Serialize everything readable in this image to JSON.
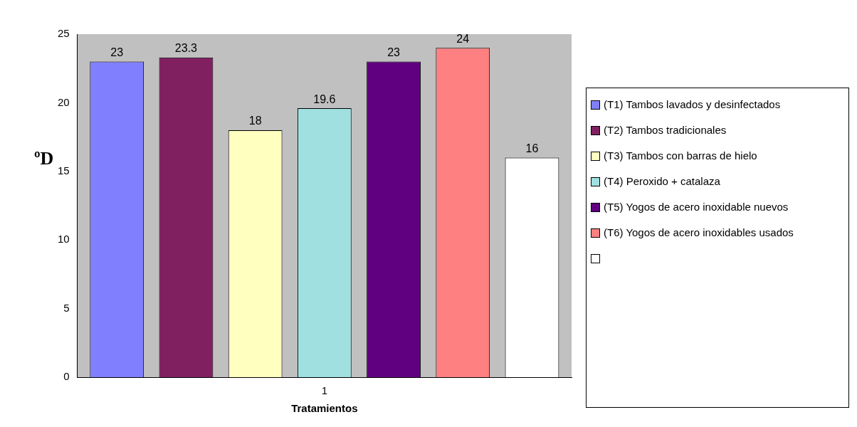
{
  "chart_data": {
    "type": "bar",
    "xlabel": "Tratamientos",
    "ylabel": "ºD",
    "categories": [
      "1"
    ],
    "series": [
      {
        "name": "(T1) Tambos lavados y desinfectados",
        "color": "#8080ff",
        "values": [
          23
        ]
      },
      {
        "name": "(T2) Tambos tradicionales",
        "color": "#802060",
        "values": [
          23.3
        ]
      },
      {
        "name": "(T3) Tambos con barras de hielo",
        "color": "#ffffc0",
        "values": [
          18
        ]
      },
      {
        "name": "(T4) Peroxido + catalaza",
        "color": "#a0e0e0",
        "values": [
          19.6
        ]
      },
      {
        "name": "(T5) Yogos de acero inoxidable nuevos",
        "color": "#600080",
        "values": [
          23
        ]
      },
      {
        "name": "(T6) Yogos de acero inoxidables usados",
        "color": "#ff8080",
        "values": [
          24
        ]
      },
      {
        "color": "#ffffff",
        "values": [
          16
        ]
      }
    ],
    "ylim": [
      0,
      25
    ],
    "yticks": [
      0,
      5,
      10,
      15,
      20,
      25
    ],
    "grid": false,
    "legend": "right",
    "data_labels": true
  }
}
